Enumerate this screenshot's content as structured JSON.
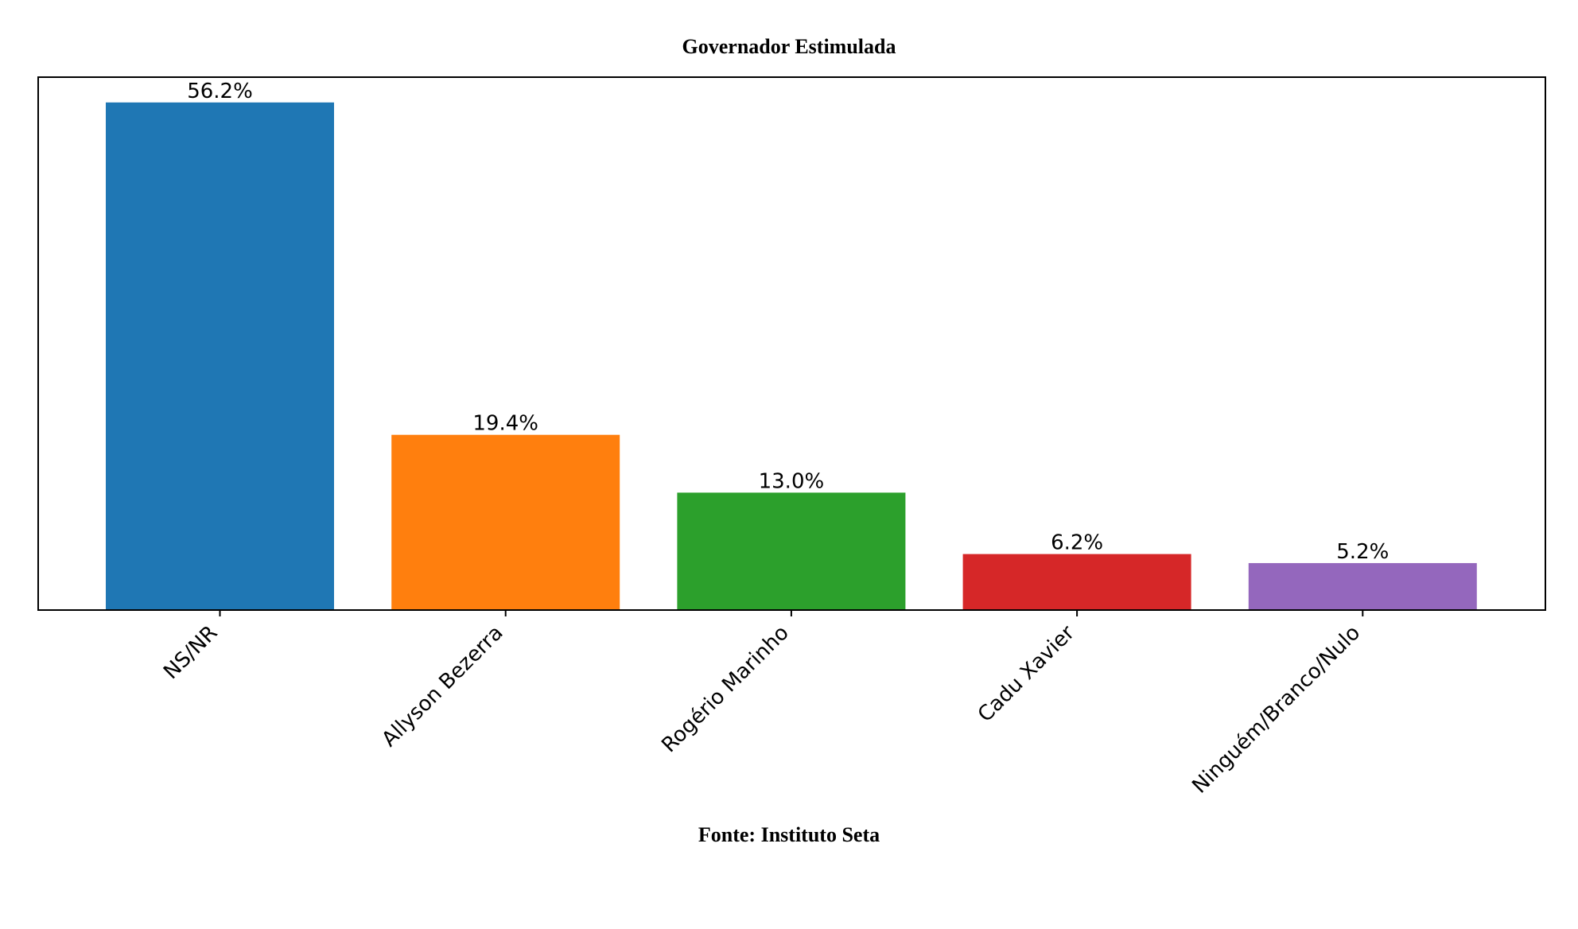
{
  "chart_data": {
    "type": "bar",
    "title": "Governador Estimulada",
    "footer": "Fonte: Instituto Seta",
    "xlabel": "",
    "ylabel": "",
    "grid": false,
    "ylim": [
      0,
      59
    ],
    "categories": [
      "NS/NR",
      "Allyson Bezerra",
      "Rogério Marinho",
      "Cadu Xavier",
      "Ninguém/Branco/Nulo"
    ],
    "values": [
      56.2,
      19.4,
      13.0,
      6.2,
      5.2
    ],
    "value_labels": [
      "56.2%",
      "19.4%",
      "13.0%",
      "6.2%",
      "5.2%"
    ],
    "colors": [
      "#1f77b4",
      "#ff7f0e",
      "#2ca02c",
      "#d62728",
      "#9467bd"
    ]
  }
}
